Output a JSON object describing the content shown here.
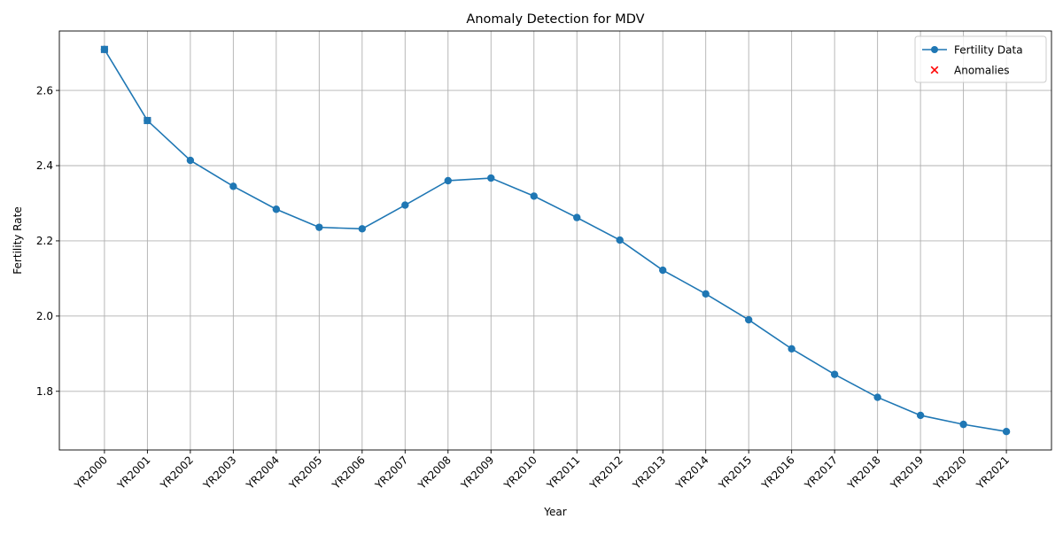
{
  "chart_data": {
    "type": "line",
    "title": "Anomaly Detection for MDV",
    "xlabel": "Year",
    "ylabel": "Fertility Rate",
    "categories": [
      "YR2000",
      "YR2001",
      "YR2002",
      "YR2003",
      "YR2004",
      "YR2005",
      "YR2006",
      "YR2007",
      "YR2008",
      "YR2009",
      "YR2010",
      "YR2011",
      "YR2012",
      "YR2013",
      "YR2014",
      "YR2015",
      "YR2016",
      "YR2017",
      "YR2018",
      "YR2019",
      "YR2020",
      "YR2021"
    ],
    "series": [
      {
        "name": "Fertility Data",
        "color": "#1f77b4",
        "marker": "circle",
        "values": [
          2.709,
          2.52,
          2.414,
          2.345,
          2.284,
          2.236,
          2.232,
          2.295,
          2.36,
          2.367,
          2.319,
          2.262,
          2.202,
          2.122,
          2.059,
          1.99,
          1.913,
          1.845,
          1.784,
          1.736,
          1.712,
          1.693
        ]
      }
    ],
    "anomalies": {
      "name": "Anomalies",
      "color": "#ff0000",
      "marker": "x",
      "categories": [
        "YR2000",
        "YR2001"
      ],
      "values": [
        2.709,
        2.52
      ]
    },
    "yticks": [
      1.8,
      2.0,
      2.2,
      2.4,
      2.6
    ],
    "ylim": [
      1.644,
      2.758
    ],
    "grid": true,
    "legend_position": "top-right"
  }
}
